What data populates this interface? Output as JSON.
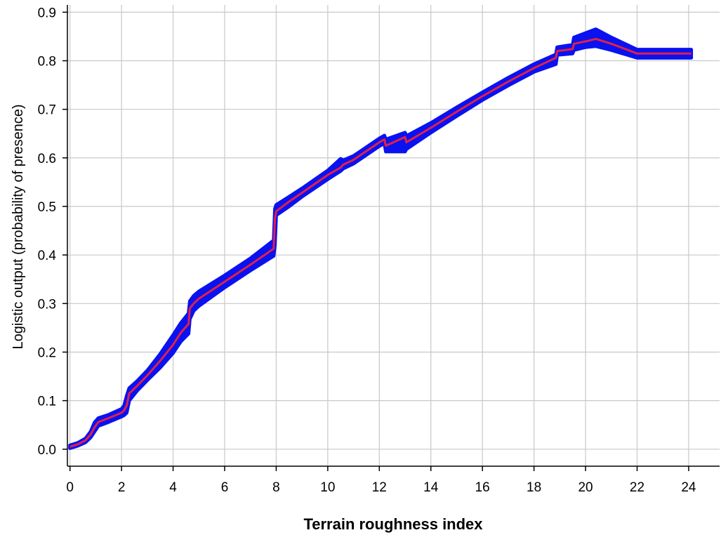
{
  "chart_data": {
    "type": "line",
    "title": "",
    "xlabel": "Terrain roughness index",
    "ylabel": "Logistic output (probability of presence)",
    "xlim": [
      -0.1,
      25.2
    ],
    "ylim": [
      -0.035,
      0.915
    ],
    "xticks": [
      0,
      2,
      4,
      6,
      8,
      10,
      12,
      14,
      16,
      18,
      20,
      22,
      24
    ],
    "yticks": [
      0.0,
      0.1,
      0.2,
      0.3,
      0.4,
      0.5,
      0.6,
      0.7,
      0.8,
      0.9
    ],
    "xtick_labels": [
      "0",
      "2",
      "4",
      "6",
      "8",
      "10",
      "12",
      "14",
      "16",
      "18",
      "20",
      "22",
      "24"
    ],
    "ytick_labels": [
      "0.0",
      "0.1",
      "0.2",
      "0.3",
      "0.4",
      "0.5",
      "0.6",
      "0.7",
      "0.8",
      "0.9"
    ],
    "grid": true,
    "colors": {
      "band": "#0a12f0",
      "mean": "#e0204a",
      "grid": "#c8c8c8"
    },
    "series": [
      {
        "role": "mean",
        "x": [
          0.0,
          0.3,
          0.6,
          0.8,
          0.95,
          1.1,
          1.5,
          2.0,
          2.1,
          2.2,
          2.3,
          2.6,
          3.0,
          3.5,
          4.0,
          4.3,
          4.6,
          4.65,
          4.8,
          5.0,
          6.0,
          7.0,
          7.9,
          7.95,
          8.0,
          8.5,
          9.0,
          10.0,
          10.5,
          10.6,
          11.0,
          12.0,
          12.2,
          12.25,
          13.0,
          13.05,
          14.0,
          15.0,
          16.0,
          17.0,
          18.0,
          18.85,
          18.9,
          19.5,
          19.55,
          20.0,
          20.4,
          21.0,
          22.0,
          24.1
        ],
        "y": [
          0.005,
          0.01,
          0.018,
          0.03,
          0.045,
          0.056,
          0.064,
          0.075,
          0.08,
          0.09,
          0.115,
          0.13,
          0.152,
          0.182,
          0.215,
          0.24,
          0.258,
          0.29,
          0.3,
          0.31,
          0.345,
          0.38,
          0.413,
          0.475,
          0.49,
          0.51,
          0.528,
          0.565,
          0.58,
          0.586,
          0.596,
          0.632,
          0.638,
          0.625,
          0.643,
          0.632,
          0.662,
          0.695,
          0.727,
          0.757,
          0.785,
          0.806,
          0.82,
          0.824,
          0.835,
          0.84,
          0.845,
          0.835,
          0.815,
          0.815
        ]
      },
      {
        "role": "band",
        "x": [
          0.0,
          0.3,
          0.6,
          0.8,
          0.95,
          1.1,
          1.5,
          2.0,
          2.1,
          2.2,
          2.3,
          2.6,
          3.0,
          3.5,
          4.0,
          4.3,
          4.6,
          4.65,
          4.8,
          5.0,
          6.0,
          7.0,
          7.9,
          7.95,
          8.0,
          8.5,
          9.0,
          10.0,
          10.5,
          10.6,
          11.0,
          12.0,
          12.2,
          12.25,
          13.0,
          13.05,
          14.0,
          15.0,
          16.0,
          17.0,
          18.0,
          18.85,
          18.9,
          19.5,
          19.55,
          20.0,
          20.4,
          21.0,
          22.0,
          24.1
        ],
        "upper": [
          0.008,
          0.013,
          0.022,
          0.036,
          0.055,
          0.064,
          0.071,
          0.083,
          0.09,
          0.11,
          0.126,
          0.14,
          0.162,
          0.196,
          0.235,
          0.26,
          0.28,
          0.305,
          0.316,
          0.325,
          0.358,
          0.393,
          0.43,
          0.495,
          0.503,
          0.52,
          0.537,
          0.574,
          0.598,
          0.595,
          0.604,
          0.64,
          0.646,
          0.638,
          0.652,
          0.645,
          0.672,
          0.704,
          0.735,
          0.765,
          0.793,
          0.813,
          0.828,
          0.833,
          0.848,
          0.857,
          0.865,
          0.848,
          0.823,
          0.823
        ],
        "lower": [
          0.002,
          0.007,
          0.014,
          0.024,
          0.036,
          0.048,
          0.056,
          0.067,
          0.07,
          0.075,
          0.1,
          0.12,
          0.142,
          0.168,
          0.198,
          0.222,
          0.238,
          0.268,
          0.285,
          0.295,
          0.333,
          0.368,
          0.398,
          0.42,
          0.482,
          0.5,
          0.52,
          0.556,
          0.573,
          0.578,
          0.588,
          0.624,
          0.63,
          0.613,
          0.613,
          0.618,
          0.652,
          0.686,
          0.719,
          0.749,
          0.777,
          0.793,
          0.812,
          0.815,
          0.822,
          0.828,
          0.83,
          0.822,
          0.806,
          0.806
        ]
      }
    ]
  }
}
